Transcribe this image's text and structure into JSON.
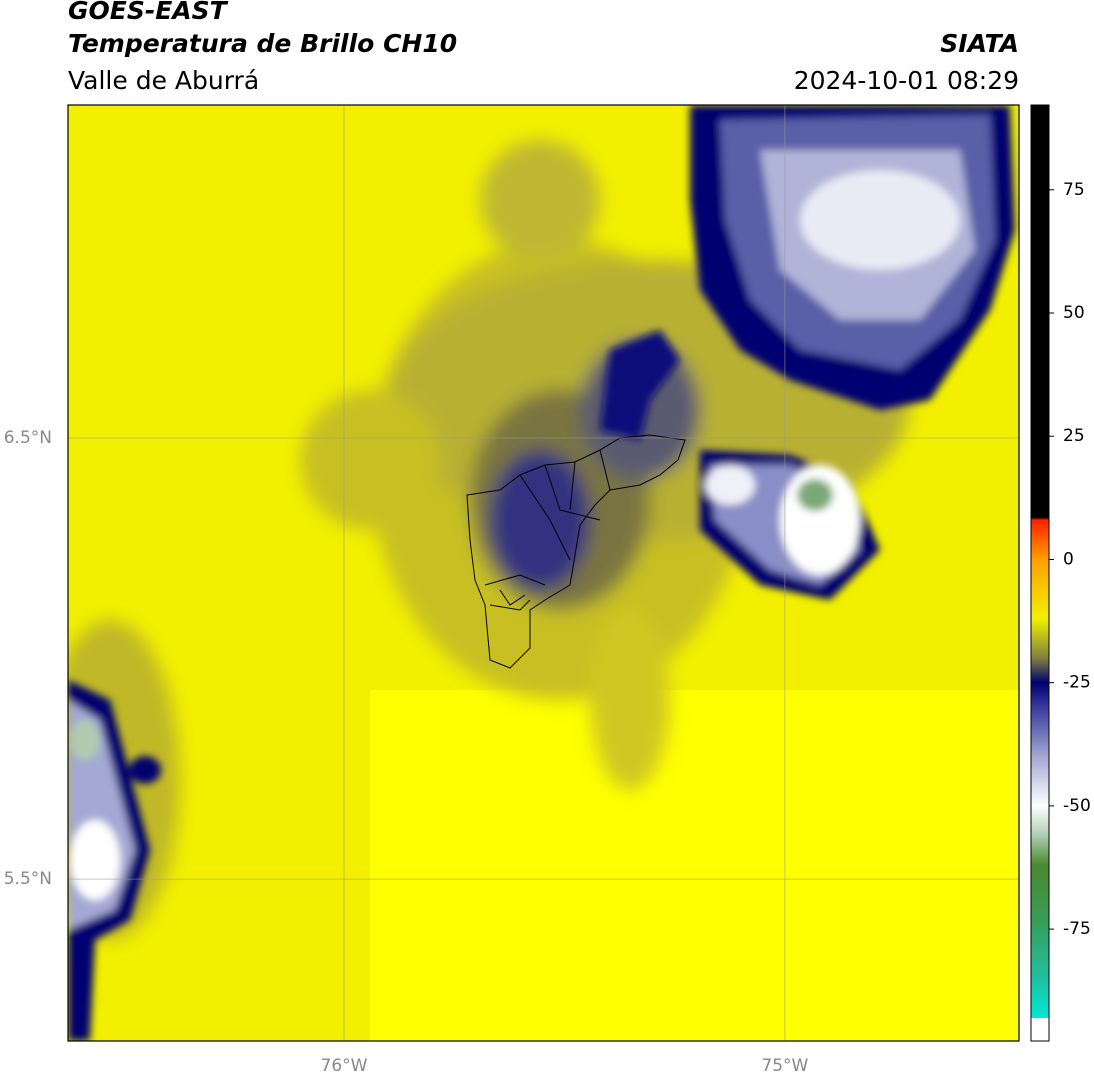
{
  "header": {
    "title": "GOES-EAST",
    "subtitle": "Temperatura de Brillo CH10",
    "region": "Valle de Aburrá",
    "source": "SIATA",
    "datetime": "2024-10-01 08:29"
  },
  "map": {
    "xlim": [
      -76.626,
      -74.469
    ],
    "ylim": [
      5.133,
      7.255
    ],
    "xticks": [
      {
        "value": -76,
        "label": "76°W"
      },
      {
        "value": -75,
        "label": "75°W"
      }
    ],
    "yticks": [
      {
        "value": 6.5,
        "label": "6.5°N"
      },
      {
        "value": 5.5,
        "label": "5.5°N"
      }
    ],
    "grid": true
  },
  "colorbar": {
    "lim": [
      -97.7,
      92.2
    ],
    "ticks": [
      75,
      50,
      25,
      0,
      -25,
      -50,
      -75
    ],
    "stops": [
      {
        "value": -97.7,
        "color": "#ffffff"
      },
      {
        "value": -93,
        "color": "#ffffff"
      },
      {
        "value": -93,
        "color": "#00e8d8"
      },
      {
        "value": -85,
        "color": "#20c0a0"
      },
      {
        "value": -72,
        "color": "#3a9a50"
      },
      {
        "value": -62,
        "color": "#4a8a30"
      },
      {
        "value": -56,
        "color": "#b0ccb0"
      },
      {
        "value": -50,
        "color": "#ffffff"
      },
      {
        "value": -40,
        "color": "#a4a8d4"
      },
      {
        "value": -30,
        "color": "#3a3aa0"
      },
      {
        "value": -25,
        "color": "#000070"
      },
      {
        "value": -20,
        "color": "#808040"
      },
      {
        "value": -12,
        "color": "#f0f000"
      },
      {
        "value": 0,
        "color": "#ffa000"
      },
      {
        "value": 8,
        "color": "#ff2000"
      },
      {
        "value": 8.5,
        "color": "#000000"
      },
      {
        "value": 92.2,
        "color": "#000000"
      }
    ]
  }
}
